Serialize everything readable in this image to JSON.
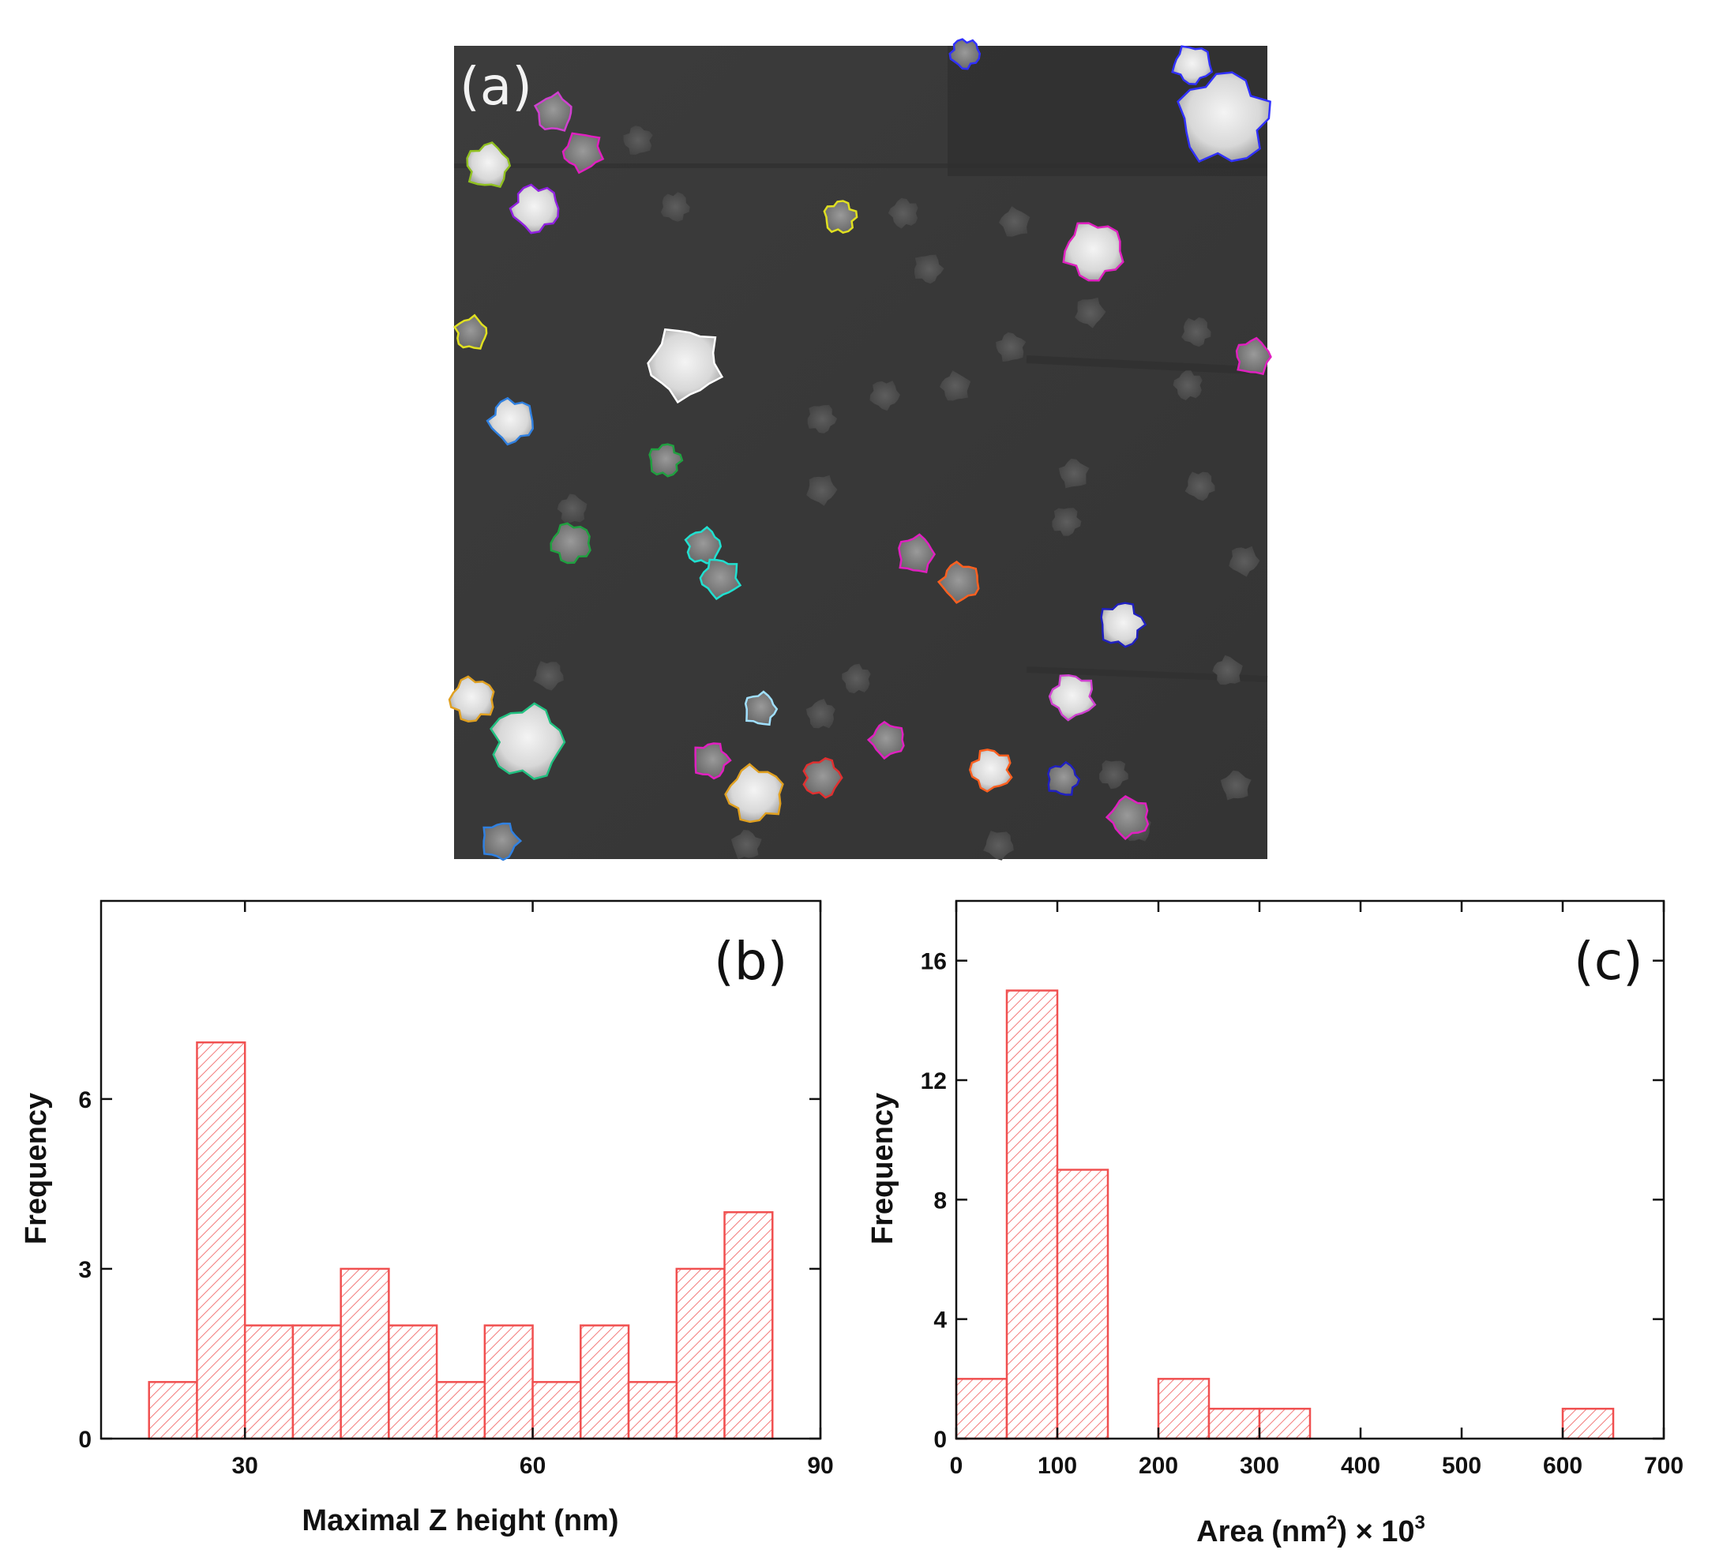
{
  "micrograph": {
    "label": "(a)",
    "outline_colors": [
      "#e020c0",
      "#d040d0",
      "#90c020",
      "#9020e0",
      "#e0e020",
      "#ffffff",
      "#3080e0",
      "#20a040",
      "#20e0d0",
      "#ff6020",
      "#2020c0",
      "#e03030",
      "#e0a020",
      "#20c080",
      "#a0e0ff",
      "#3030ff"
    ]
  },
  "chart_data": [
    {
      "type": "bar",
      "panel_label": "(b)",
      "xlabel": "Maximal Z height (nm)",
      "ylabel": "Frequency",
      "bin_edges": [
        20,
        25,
        30,
        35,
        40,
        45,
        50,
        55,
        60,
        65,
        70,
        75,
        80,
        85
      ],
      "values": [
        1,
        7,
        2,
        2,
        3,
        2,
        1,
        2,
        1,
        2,
        1,
        3,
        4
      ],
      "xlim": [
        15,
        90
      ],
      "ylim": [
        0,
        9.5
      ],
      "x_ticks": [
        "30",
        "60",
        "90"
      ],
      "x_tick_values": [
        30,
        60,
        90
      ],
      "y_ticks": [
        "0",
        "3",
        "6"
      ],
      "y_tick_values": [
        0,
        3,
        6
      ],
      "bar_color": "#f05050",
      "bar_fill": "hatched"
    },
    {
      "type": "bar",
      "panel_label": "(c)",
      "xlabel_main": "Area (nm",
      "xlabel_sup1": "2",
      "xlabel_mid": ") × 10",
      "xlabel_sup2": "3",
      "ylabel": "Frequency",
      "bin_edges": [
        0,
        50,
        100,
        150,
        200,
        250,
        300,
        350,
        400,
        450,
        500,
        550,
        600,
        650
      ],
      "values": [
        2,
        15,
        9,
        0,
        2,
        1,
        1,
        0,
        0,
        0,
        0,
        0,
        1
      ],
      "xlim": [
        0,
        700
      ],
      "ylim": [
        0,
        18
      ],
      "x_ticks": [
        "0",
        "100",
        "200",
        "300",
        "400",
        "500",
        "600",
        "700"
      ],
      "x_tick_values": [
        0,
        100,
        200,
        300,
        400,
        500,
        600,
        700
      ],
      "y_ticks": [
        "0",
        "4",
        "8",
        "12",
        "16"
      ],
      "y_tick_values": [
        0,
        4,
        8,
        12,
        16
      ],
      "bar_color": "#f05050",
      "bar_fill": "hatched"
    }
  ]
}
